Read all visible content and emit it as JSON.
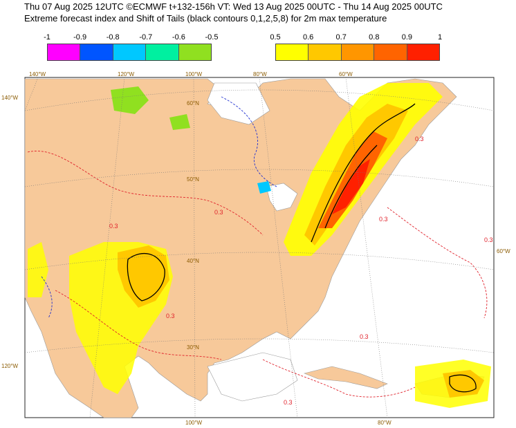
{
  "header": {
    "line1": "Thu 07 Aug 2025 12UTC ©ECMWF t+132-156h  VT: Wed 13 Aug 2025 00UTC - Thu 14 Aug 2025 00UTC",
    "line2": "Extreme forecast index and Shift of Tails (black contours 0,1,2,5,8) for 2m max temperature"
  },
  "legend_cold": {
    "ticks": [
      "-1",
      "-0.9",
      "-0.8",
      "-0.7",
      "-0.6",
      "-0.5"
    ],
    "colors": [
      "#ff00ff",
      "#0055ff",
      "#00c8ff",
      "#00f0a0",
      "#90e020"
    ]
  },
  "legend_warm": {
    "ticks": [
      "0.5",
      "0.6",
      "0.7",
      "0.8",
      "0.9",
      "1"
    ],
    "colors": [
      "#ffff00",
      "#ffc800",
      "#ff9600",
      "#ff6400",
      "#ff2000"
    ]
  },
  "map": {
    "land_color": "#f7c99a",
    "sea_color": "#ffffff",
    "lon_labels": [
      "140°W",
      "120°W",
      "100°W",
      "80°W",
      "60°W",
      "100°W",
      "80°W"
    ],
    "lat_labels": [
      "60°N",
      "50°N",
      "40°N",
      "30°N"
    ],
    "edge_labels": [
      "140°W",
      "120°W",
      "60°W"
    ],
    "contour_labels": [
      "0.3",
      "0.3",
      "0.3",
      "0.3",
      "0.3",
      "0.3",
      "0.3",
      "0.3"
    ]
  }
}
